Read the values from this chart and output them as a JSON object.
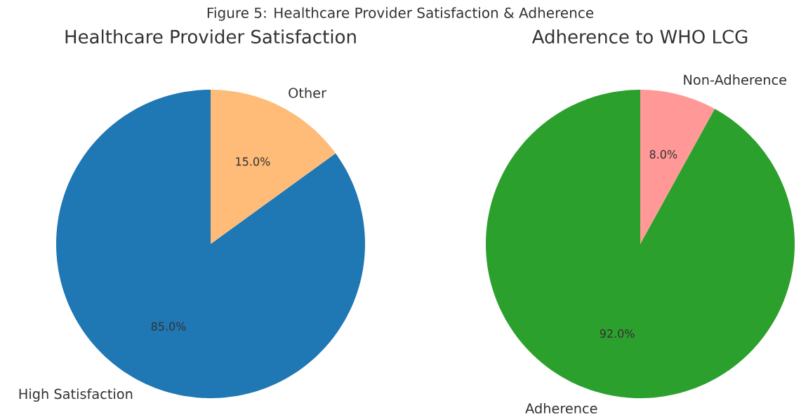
{
  "chart_data": [
    {
      "type": "pie",
      "title": "Healthcare Provider Satisfaction",
      "annotations": [
        "Figure 5: Healthcare Provider Satisfaction & Adherence"
      ],
      "categories": [
        "High Satisfaction",
        "Other"
      ],
      "values": [
        85,
        15
      ],
      "colors": [
        "#1f77b4",
        "#ffbb78"
      ],
      "value_labels": [
        "85.0%",
        "15.0%"
      ]
    },
    {
      "type": "pie",
      "title": "Adherence to WHO LCG",
      "categories": [
        "Adherence",
        "Non-Adherence"
      ],
      "values": [
        92,
        8
      ],
      "colors": [
        "#2ca02c",
        "#ff9896"
      ],
      "value_labels": [
        "92.0%",
        "8.0%"
      ]
    }
  ]
}
